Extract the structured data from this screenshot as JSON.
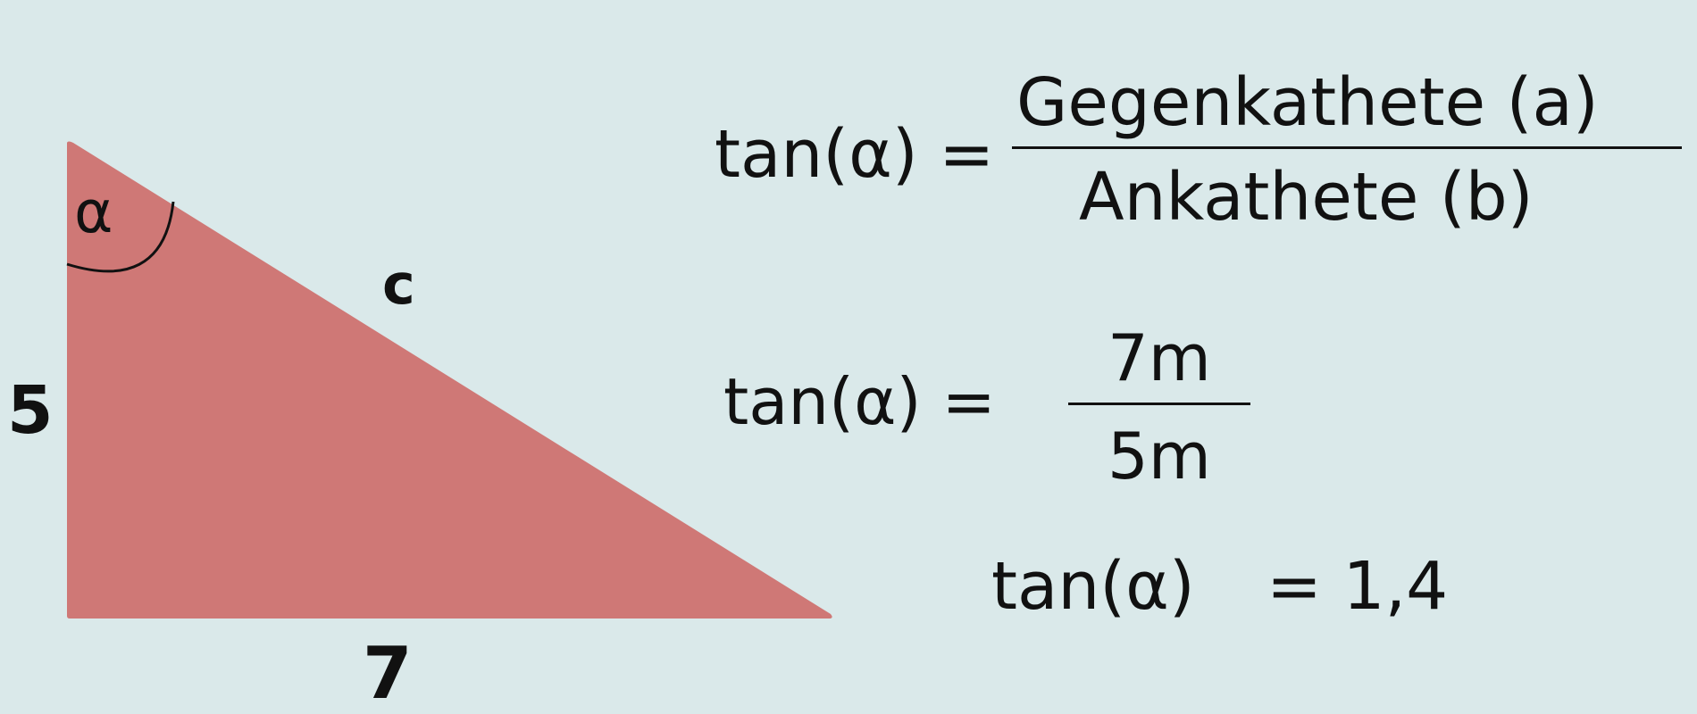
{
  "colors": {
    "background": "#dae9ea",
    "triangle": "#cf7876",
    "text": "#111111"
  },
  "triangle": {
    "angle_label": "α",
    "side_hypotenuse": "c",
    "side_vertical": "5",
    "side_horizontal": "7"
  },
  "formula": {
    "lhs": "tan(α) =",
    "numerator": "Gegenkathete (a)",
    "denominator": "Ankathete (b)"
  },
  "substitution": {
    "lhs": "tan(α)  =",
    "numerator": "7m",
    "denominator": "5m"
  },
  "result": {
    "lhs": "tan(α)",
    "rhs": "= 1,4"
  }
}
